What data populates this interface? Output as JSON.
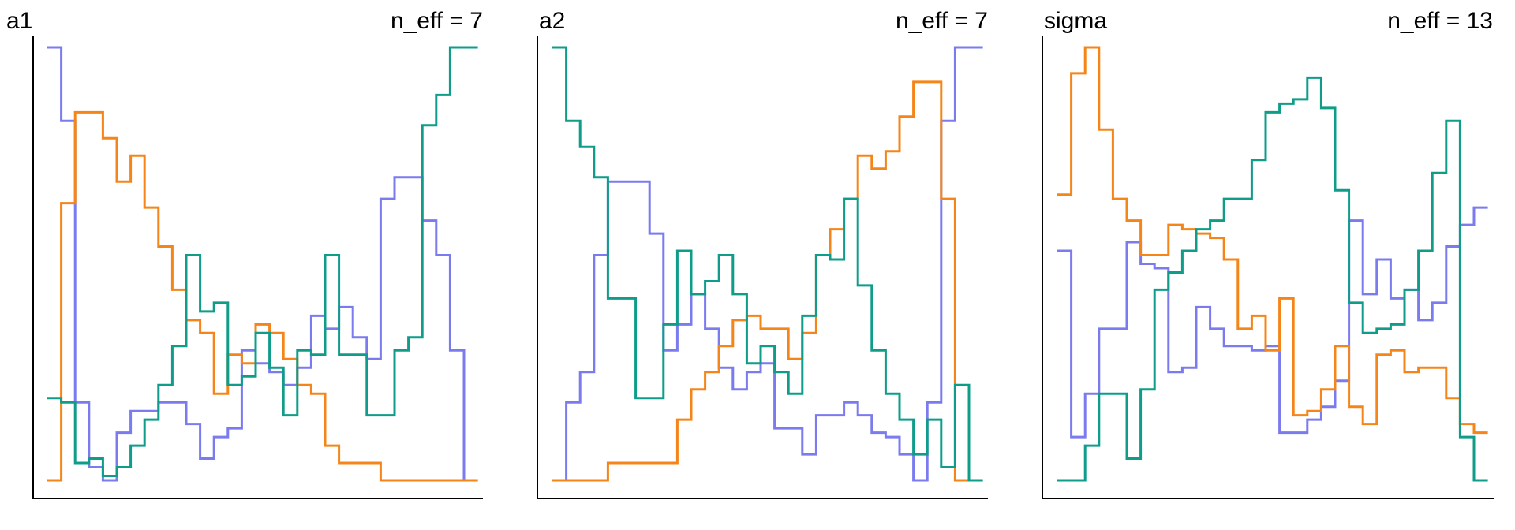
{
  "colors": {
    "chain_1": "#7b7bf0",
    "chain_2": "#f58518",
    "chain_3": "#0f9d8a"
  },
  "chart_data": [
    {
      "type": "line",
      "style": "step rank-histogram (trankplot), 3 chains",
      "title": "a1",
      "annotation": "n_eff = 7",
      "xlabel": "",
      "ylabel": "",
      "grid": false,
      "legend": "none",
      "x": [
        1,
        2,
        3,
        4,
        5,
        6,
        7,
        8,
        9,
        10,
        11,
        12,
        13,
        14,
        15,
        16,
        17,
        18,
        19,
        20,
        21,
        22,
        23,
        24,
        25,
        26,
        27,
        28,
        29,
        30,
        31
      ],
      "series": [
        {
          "values": [
            100,
            83,
            18,
            3,
            0,
            11,
            16,
            16,
            18,
            18,
            13,
            5,
            10,
            12,
            30,
            27,
            25,
            22,
            26,
            38,
            35,
            40,
            33,
            28,
            65,
            70,
            70,
            60,
            52,
            30,
            0
          ]
        },
        {
          "values": [
            0,
            64,
            85,
            85,
            79,
            69,
            75,
            63,
            54,
            44,
            37,
            34,
            20,
            29,
            27,
            36,
            34,
            28,
            22,
            20,
            8,
            4,
            4,
            4,
            0,
            0,
            0,
            0,
            0,
            0,
            0
          ]
        },
        {
          "values": [
            19,
            18,
            4,
            5,
            1,
            3,
            8,
            14,
            22,
            31,
            52,
            39,
            41,
            22,
            24,
            34,
            26,
            15,
            30,
            29,
            52,
            29,
            29,
            15,
            15,
            30,
            33,
            82,
            89,
            100,
            100
          ]
        }
      ]
    },
    {
      "type": "line",
      "style": "step rank-histogram (trankplot), 3 chains",
      "title": "a2",
      "annotation": "n_eff = 7",
      "xlabel": "",
      "ylabel": "",
      "grid": false,
      "legend": "none",
      "x": [
        1,
        2,
        3,
        4,
        5,
        6,
        7,
        8,
        9,
        10,
        11,
        12,
        13,
        14,
        15,
        16,
        17,
        18,
        19,
        20,
        21,
        22,
        23,
        24,
        25,
        26,
        27,
        28,
        29,
        30,
        31
      ],
      "series": [
        {
          "values": [
            0,
            18,
            25,
            52,
            69,
            69,
            69,
            57,
            30,
            36,
            43,
            35,
            26,
            21,
            25,
            27,
            12,
            12,
            6,
            15,
            15,
            18,
            15,
            11,
            10,
            6,
            0,
            18,
            83,
            100,
            100
          ]
        },
        {
          "values": [
            0,
            0,
            0,
            0,
            4,
            4,
            4,
            4,
            4,
            14,
            21,
            25,
            31,
            37,
            38,
            35,
            35,
            28,
            34,
            52,
            58,
            65,
            75,
            72,
            76,
            84,
            92,
            92,
            65,
            0,
            0
          ]
        },
        {
          "values": [
            100,
            83,
            77,
            70,
            42,
            42,
            19,
            19,
            36,
            53,
            43,
            46,
            52,
            43,
            27,
            31,
            25,
            20,
            38,
            52,
            51,
            65,
            45,
            30,
            20,
            14,
            6,
            14,
            3,
            22,
            0
          ]
        }
      ]
    },
    {
      "type": "line",
      "style": "step rank-histogram (trankplot), 3 chains",
      "title": "sigma",
      "annotation": "n_eff = 13",
      "xlabel": "",
      "ylabel": "",
      "grid": false,
      "legend": "none",
      "x": [
        1,
        2,
        3,
        4,
        5,
        6,
        7,
        8,
        9,
        10,
        11,
        12,
        13,
        14,
        15,
        16,
        17,
        18,
        19,
        20,
        21,
        22,
        23,
        24,
        25,
        26,
        27,
        28,
        29,
        30,
        31
      ],
      "series": [
        {
          "values": [
            53,
            10,
            20,
            35,
            35,
            55,
            50,
            49,
            25,
            26,
            40,
            35,
            31,
            31,
            30,
            31,
            11,
            11,
            14,
            17,
            23,
            60,
            43,
            51,
            42,
            44,
            37,
            41,
            54,
            59,
            63
          ]
        },
        {
          "values": [
            66,
            94,
            100,
            81,
            65,
            60,
            52,
            52,
            59,
            58,
            57,
            56,
            51,
            35,
            38,
            30,
            42,
            15,
            16,
            21,
            31,
            17,
            13,
            29,
            30,
            25,
            26,
            26,
            19,
            13,
            11
          ]
        },
        {
          "values": [
            0,
            0,
            8,
            20,
            20,
            5,
            21,
            44,
            48,
            53,
            58,
            60,
            65,
            65,
            74,
            85,
            87,
            88,
            93,
            86,
            67,
            41,
            34,
            35,
            36,
            44,
            53,
            71,
            83,
            10,
            0
          ]
        }
      ]
    }
  ]
}
